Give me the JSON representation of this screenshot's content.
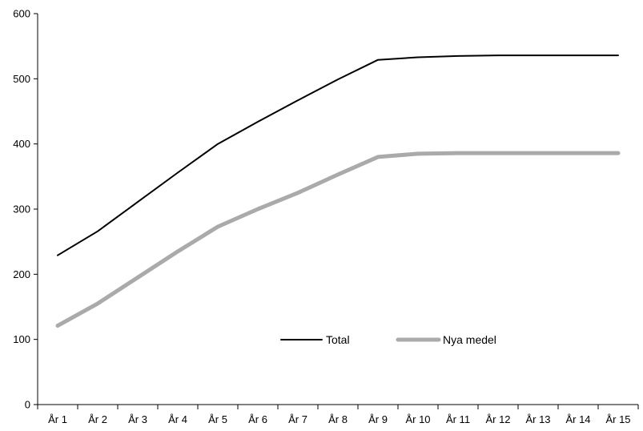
{
  "chart_data": {
    "type": "line",
    "title": "",
    "xlabel": "",
    "ylabel": "",
    "categories": [
      "År 1",
      "År 2",
      "År 3",
      "År 4",
      "År 5",
      "År 6",
      "År 7",
      "År 8",
      "År 9",
      "År 10",
      "År 11",
      "År 12",
      "År 13",
      "År 14",
      "År 15"
    ],
    "ylim": [
      0,
      600
    ],
    "yticks": [
      0,
      100,
      200,
      300,
      400,
      500,
      600
    ],
    "grid": false,
    "legend_position": "bottom-center",
    "series": [
      {
        "name": "Total",
        "color": "#000000",
        "values": [
          229,
          266,
          311,
          356,
          400,
          434,
          467,
          499,
          529,
          533,
          535,
          536,
          536,
          536,
          536
        ]
      },
      {
        "name": "Nya medel",
        "color": "#aaaaaa",
        "values": [
          121,
          155,
          195,
          235,
          273,
          300,
          325,
          353,
          380,
          385,
          386,
          386,
          386,
          386,
          386
        ]
      }
    ]
  }
}
